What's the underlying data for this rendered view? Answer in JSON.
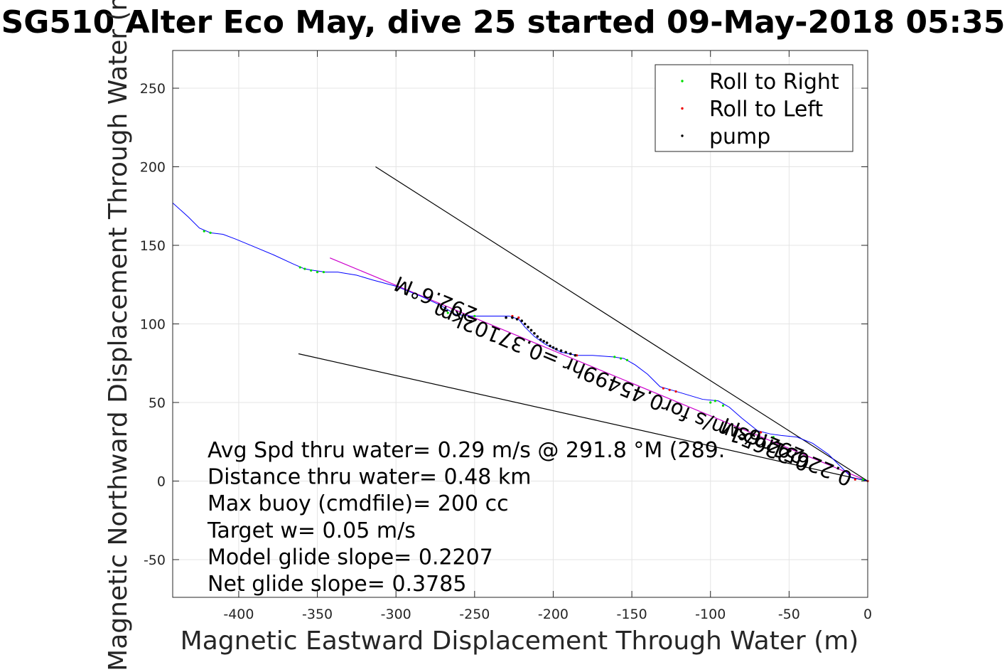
{
  "chart_data": {
    "type": "line",
    "title": "SG510 Alter Eco May, dive 25 started 09-May-2018 05:35",
    "xlabel": "Magnetic Eastward Displacement Through Water (m)",
    "ylabel": "Magnetic Northward Displacement Through Water (m)",
    "xlim": [
      -442,
      0
    ],
    "ylim": [
      -74,
      274
    ],
    "xticks": [
      -400,
      -350,
      -300,
      -250,
      -200,
      -150,
      -100,
      -50,
      0
    ],
    "yticks": [
      -50,
      0,
      50,
      100,
      150,
      200,
      250
    ],
    "grid": true,
    "legend": {
      "placement": "top-right",
      "entries": [
        {
          "label": "Roll to Right",
          "color": "#00dd00"
        },
        {
          "label": "Roll to Left",
          "color": "#ee0000"
        },
        {
          "label": "pump",
          "color": "#000000"
        }
      ]
    },
    "track": {
      "color": "#0000ff",
      "points": [
        [
          0,
          0
        ],
        [
          -4,
          1
        ],
        [
          -10,
          2
        ],
        [
          -15,
          7
        ],
        [
          -25,
          17
        ],
        [
          -35,
          24
        ],
        [
          -45,
          28
        ],
        [
          -55,
          29
        ],
        [
          -62,
          30
        ],
        [
          -70,
          32
        ],
        [
          -80,
          40
        ],
        [
          -88,
          47
        ],
        [
          -95,
          51
        ],
        [
          -105,
          52
        ],
        [
          -115,
          55
        ],
        [
          -125,
          58
        ],
        [
          -132,
          60
        ],
        [
          -140,
          68
        ],
        [
          -148,
          74
        ],
        [
          -155,
          78
        ],
        [
          -162,
          79
        ],
        [
          -175,
          80
        ],
        [
          -185,
          80
        ],
        [
          -195,
          82
        ],
        [
          -205,
          87
        ],
        [
          -212,
          92
        ],
        [
          -218,
          98
        ],
        [
          -222,
          103
        ],
        [
          -228,
          105
        ],
        [
          -240,
          105
        ],
        [
          -252,
          105
        ],
        [
          -262,
          106
        ],
        [
          -272,
          112
        ],
        [
          -285,
          118
        ],
        [
          -300,
          124
        ],
        [
          -315,
          128
        ],
        [
          -325,
          131
        ],
        [
          -337,
          133
        ],
        [
          -345,
          133
        ],
        [
          -352,
          134
        ],
        [
          -358,
          135
        ],
        [
          -365,
          138
        ],
        [
          -378,
          144
        ],
        [
          -390,
          149
        ],
        [
          -402,
          154
        ],
        [
          -410,
          157
        ],
        [
          -418,
          158
        ],
        [
          -425,
          161
        ],
        [
          -432,
          168
        ],
        [
          -442,
          177
        ]
      ]
    },
    "roll_right": [
      [
        -418,
        158
      ],
      [
        -422,
        159
      ],
      [
        -346,
        133
      ],
      [
        -350,
        133
      ],
      [
        -354,
        134
      ],
      [
        -358,
        135
      ],
      [
        -361,
        136
      ],
      [
        -250,
        105
      ],
      [
        -267,
        107
      ],
      [
        -270,
        109
      ],
      [
        -153,
        77
      ],
      [
        -157,
        78
      ],
      [
        -161,
        79
      ],
      [
        -100,
        50
      ],
      [
        -97,
        51
      ],
      [
        -92,
        48
      ],
      [
        -60,
        28
      ],
      [
        -3,
        1
      ]
    ],
    "roll_left": [
      [
        -226,
        105
      ],
      [
        -222,
        104
      ],
      [
        -185,
        80
      ],
      [
        -130,
        59
      ],
      [
        -126,
        58
      ],
      [
        -122,
        57
      ],
      [
        -68,
        31
      ],
      [
        -8,
        1
      ],
      [
        0,
        0
      ]
    ],
    "pump": [
      [
        -230,
        104
      ],
      [
        -226,
        104
      ],
      [
        -223,
        103
      ],
      [
        -220,
        102
      ],
      [
        -218,
        100
      ],
      [
        -216,
        98
      ],
      [
        -214,
        96
      ],
      [
        -212,
        94
      ],
      [
        -210,
        92
      ],
      [
        -208,
        90
      ],
      [
        -206,
        89
      ],
      [
        -204,
        88
      ],
      [
        -202,
        86
      ],
      [
        -200,
        85
      ],
      [
        -198,
        84
      ],
      [
        -195,
        83
      ],
      [
        -192,
        82
      ],
      [
        -189,
        81
      ],
      [
        -186,
        80
      ]
    ],
    "lines": [
      {
        "name": "mean-course",
        "color": "#cc00cc",
        "points": [
          [
            0,
            0
          ],
          [
            -342,
            142
          ]
        ]
      },
      {
        "name": "current-line-upper",
        "color": "#000000",
        "points": [
          [
            0,
            0
          ],
          [
            -313,
            200
          ]
        ]
      },
      {
        "name": "current-line-lower",
        "color": "#000000",
        "points": [
          [
            0,
            0
          ],
          [
            -362,
            81
          ]
        ]
      }
    ],
    "in_plot_labels": [
      {
        "text": "292.6°M",
        "x": -273,
        "y": 120,
        "angle_deg": -157.4
      },
      {
        "text": "0.22651m/s for0.45499hr =0.37102km",
        "x": -155,
        "y": 64,
        "angle_deg": -157.4
      },
      {
        "text": "292.6°M",
        "x": -65,
        "y": 30,
        "angle_deg": -157.4
      },
      {
        "text": "0.22651m/s",
        "x": -45,
        "y": 20,
        "angle_deg": -157.4
      }
    ],
    "annotations": [
      "Avg Spd thru water=  0.29 m/s @ 291.8 °M (289.",
      "Distance thru water=  0.48 km",
      "Max buoy (cmdfile)= 200 cc",
      "Target w= 0.05 m/s",
      "Model glide slope= 0.2207",
      "Net glide slope= 0.3785"
    ]
  }
}
